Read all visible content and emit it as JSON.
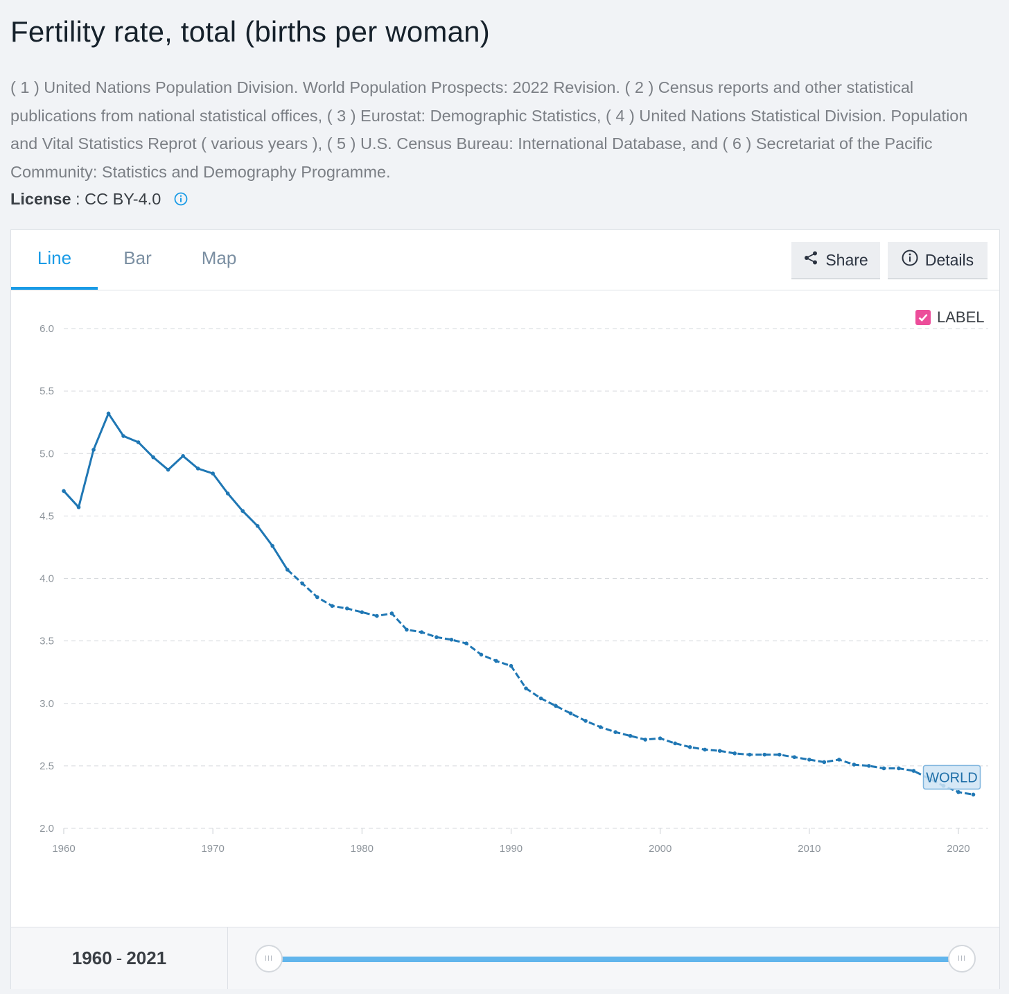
{
  "page": {
    "title": "Fertility rate, total (births per woman)",
    "source": "( 1 ) United Nations Population Division. World Population Prospects: 2022 Revision. ( 2 ) Census reports and other statistical publications from national statistical offices, ( 3 ) Eurostat: Demographic Statistics, ( 4 ) United Nations Statistical Division. Population and Vital Statistics Reprot ( various years ), ( 5 ) U.S. Census Bureau: International Database, and ( 6 ) Secretariat of the Pacific Community: Statistics and Demography Programme.",
    "license_label": "License",
    "license_sep": " : ",
    "license_value": "CC BY-4.0"
  },
  "tabs": [
    {
      "label": "Line",
      "active": true
    },
    {
      "label": "Bar",
      "active": false
    },
    {
      "label": "Map",
      "active": false
    }
  ],
  "toolbar": {
    "share_label": "Share",
    "details_label": "Details"
  },
  "label_toggle": {
    "text": "LABEL",
    "checked": true
  },
  "slider": {
    "start": "1960",
    "sep": "-",
    "end": "2021",
    "handle_glyph": "III"
  },
  "colors": {
    "accent": "#1a9be6",
    "series": "#1f77b4",
    "checkbox": "#ec4d9a",
    "slider": "#61b5ec"
  },
  "chart_data": {
    "type": "line",
    "title": "",
    "xlabel": "",
    "ylabel": "",
    "ylim": [
      2.0,
      6.0
    ],
    "yticks": [
      "6.0",
      "5.5",
      "5.0",
      "4.5",
      "4.0",
      "3.5",
      "3.0",
      "2.5",
      "2.0"
    ],
    "xlim": [
      1960,
      2022
    ],
    "xticks": [
      "1960",
      "1970",
      "1980",
      "1990",
      "2000",
      "2010",
      "2020"
    ],
    "grid": "horizontal-dashed",
    "series": [
      {
        "name": "WORLD",
        "x": [
          1960,
          1961,
          1962,
          1963,
          1964,
          1965,
          1966,
          1967,
          1968,
          1969,
          1970,
          1971,
          1972,
          1973,
          1974,
          1975,
          1976,
          1977,
          1978,
          1979,
          1980,
          1981,
          1982,
          1983,
          1984,
          1985,
          1986,
          1987,
          1988,
          1989,
          1990,
          1991,
          1992,
          1993,
          1994,
          1995,
          1996,
          1997,
          1998,
          1999,
          2000,
          2001,
          2002,
          2003,
          2004,
          2005,
          2006,
          2007,
          2008,
          2009,
          2010,
          2011,
          2012,
          2013,
          2014,
          2015,
          2016,
          2017,
          2018,
          2019,
          2020,
          2021
        ],
        "values": [
          4.7,
          4.57,
          5.03,
          5.32,
          5.14,
          5.09,
          4.97,
          4.87,
          4.98,
          4.88,
          4.84,
          4.68,
          4.54,
          4.42,
          4.26,
          4.07,
          3.96,
          3.85,
          3.78,
          3.76,
          3.73,
          3.7,
          3.72,
          3.59,
          3.57,
          3.53,
          3.51,
          3.48,
          3.39,
          3.34,
          3.3,
          3.12,
          3.04,
          2.98,
          2.92,
          2.86,
          2.81,
          2.77,
          2.74,
          2.71,
          2.72,
          2.68,
          2.65,
          2.63,
          2.62,
          2.6,
          2.59,
          2.59,
          2.59,
          2.57,
          2.55,
          2.53,
          2.55,
          2.51,
          2.5,
          2.48,
          2.48,
          2.46,
          2.4,
          2.34,
          2.29,
          2.27
        ]
      }
    ]
  }
}
